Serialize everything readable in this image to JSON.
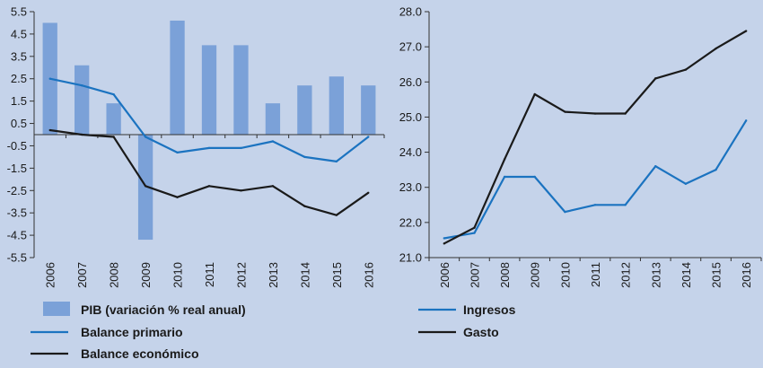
{
  "chart_data": [
    {
      "type": "bar+line",
      "x": [
        "2006",
        "2007",
        "2008",
        "2009",
        "2010",
        "2011",
        "2012",
        "2013",
        "2014",
        "2015",
        "2016"
      ],
      "ylim": [
        -5.5,
        5.5
      ],
      "yticks": [
        "5.5",
        "4.5",
        "3.5",
        "2.5",
        "1.5",
        "0.5",
        "-0.5",
        "-1.5",
        "-2.5",
        "-3.5",
        "-4.5",
        "-5.5"
      ],
      "grid": false,
      "legend_position": "bottom",
      "series": [
        {
          "name": "PIB (variación % real anual)",
          "kind": "bar",
          "color": "#7ba1d8",
          "values": [
            5.0,
            3.1,
            1.4,
            -4.7,
            5.1,
            4.0,
            4.0,
            1.4,
            2.2,
            2.6,
            2.2
          ]
        },
        {
          "name": "Balance primario",
          "kind": "line",
          "color": "#1b73c0",
          "values": [
            2.5,
            2.2,
            1.8,
            -0.1,
            -0.8,
            -0.6,
            -0.6,
            -0.3,
            -1.0,
            -1.2,
            -0.1
          ]
        },
        {
          "name": "Balance económico",
          "kind": "line",
          "color": "#1a1a1a",
          "values": [
            0.2,
            0.0,
            -0.1,
            -2.3,
            -2.8,
            -2.3,
            -2.5,
            -2.3,
            -3.2,
            -3.6,
            -2.6
          ]
        }
      ]
    },
    {
      "type": "line",
      "x": [
        "2006",
        "2007",
        "2008",
        "2009",
        "2010",
        "2011",
        "2012",
        "2013",
        "2014",
        "2015",
        "2016"
      ],
      "ylim": [
        21.0,
        28.0
      ],
      "yticks": [
        "28.0",
        "27.0",
        "26.0",
        "25.0",
        "24.0",
        "23.0",
        "22.0",
        "21.0"
      ],
      "grid": false,
      "legend_position": "bottom",
      "series": [
        {
          "name": "Ingresos",
          "color": "#1b73c0",
          "values": [
            21.55,
            21.7,
            23.3,
            23.3,
            22.3,
            22.5,
            22.5,
            23.6,
            23.1,
            23.5,
            24.9
          ]
        },
        {
          "name": "Gasto",
          "color": "#1a1a1a",
          "values": [
            21.4,
            21.85,
            23.8,
            25.65,
            25.15,
            25.1,
            25.1,
            26.1,
            26.35,
            26.95,
            27.45
          ]
        }
      ]
    }
  ]
}
